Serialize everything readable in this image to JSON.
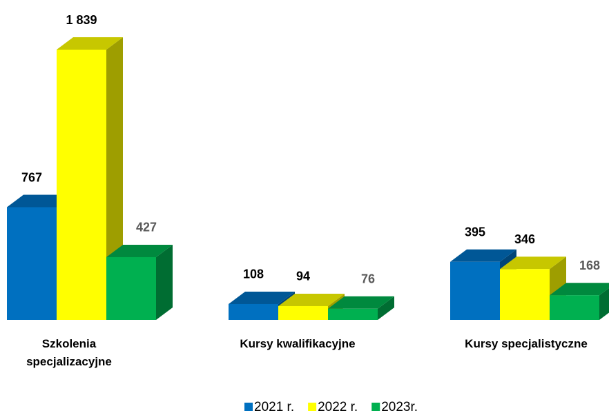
{
  "chart_data": {
    "type": "bar3d",
    "categories": [
      "Szkolenia specjalizacyjne",
      "Kursy kwalifikacyjne",
      "Kursy specjalistyczne"
    ],
    "series": [
      {
        "name": "2021 r.",
        "color": "#0070c0",
        "values": [
          767,
          108,
          395
        ],
        "value_labels": [
          "767",
          "108",
          "395"
        ]
      },
      {
        "name": "2022 r.",
        "color": "#ffff00",
        "values": [
          1839,
          94,
          346
        ],
        "value_labels": [
          "1 839",
          "94",
          "346"
        ]
      },
      {
        "name": "2023r.",
        "color": "#00b050",
        "values": [
          427,
          76,
          168
        ],
        "value_labels": [
          "427",
          "76",
          "168"
        ]
      }
    ],
    "legend": "bottom"
  }
}
